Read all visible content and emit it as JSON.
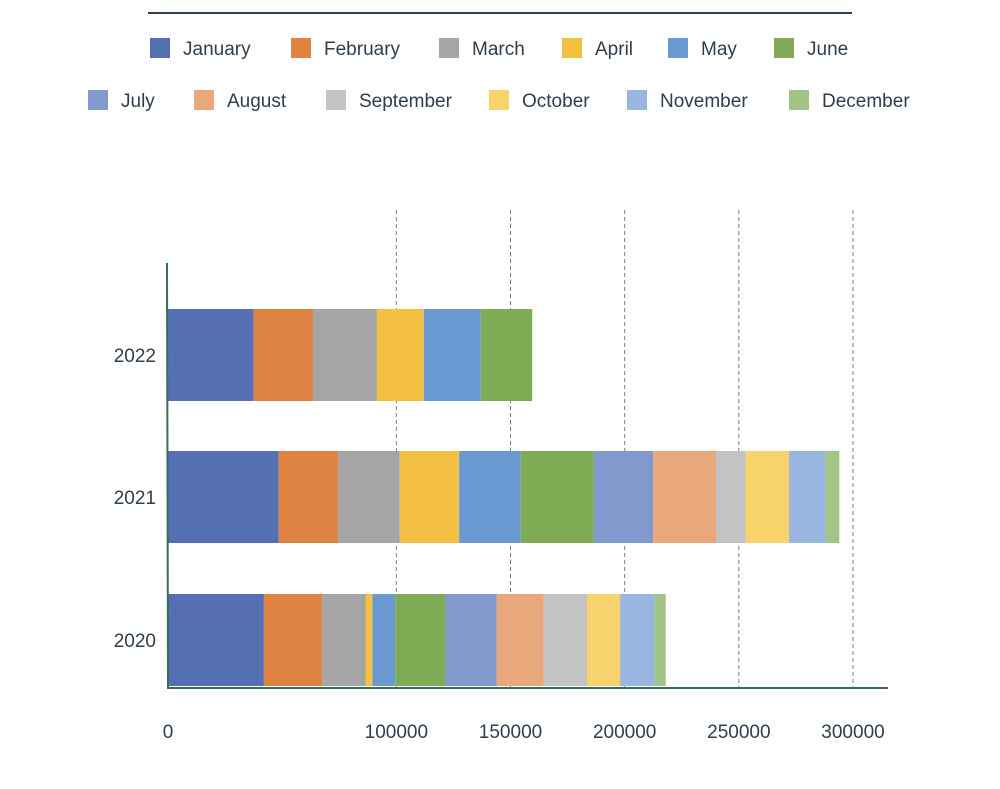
{
  "chart_data": {
    "type": "bar",
    "orientation": "horizontal",
    "stacked": true,
    "categories": [
      "2022",
      "2021",
      "2020"
    ],
    "xlim": [
      0,
      300000
    ],
    "x_ticks": [
      "0",
      "100000",
      "150000",
      "200000",
      "250000",
      "300000"
    ],
    "x_tick_values": [
      0,
      100000,
      150000,
      200000,
      250000,
      300000
    ],
    "grid": "vertical dashed",
    "legend_position": "top",
    "series": [
      {
        "name": "January",
        "color": "#5470b3",
        "values": [
          37500,
          48500,
          42000
        ]
      },
      {
        "name": "February",
        "color": "#df8343",
        "values": [
          26000,
          26000,
          25500
        ]
      },
      {
        "name": "March",
        "color": "#a5a5a5",
        "values": [
          28000,
          27000,
          19000
        ]
      },
      {
        "name": "April",
        "color": "#f4c043",
        "values": [
          20500,
          26000,
          3000
        ]
      },
      {
        "name": "May",
        "color": "#6a99d1",
        "values": [
          25000,
          27000,
          10000
        ]
      },
      {
        "name": "June",
        "color": "#7eab54",
        "values": [
          22500,
          32000,
          22000
        ]
      },
      {
        "name": "July",
        "color": "#8299cd",
        "values": [
          null,
          26000,
          22500
        ]
      },
      {
        "name": "August",
        "color": "#e8a87b",
        "values": [
          null,
          27500,
          20500
        ]
      },
      {
        "name": "September",
        "color": "#c3c3c3",
        "values": [
          null,
          13000,
          19000
        ]
      },
      {
        "name": "October",
        "color": "#f8d36b",
        "values": [
          null,
          19000,
          14500
        ]
      },
      {
        "name": "November",
        "color": "#98b6e0",
        "values": [
          null,
          16000,
          15000
        ]
      },
      {
        "name": "December",
        "color": "#a2c585",
        "values": [
          null,
          6000,
          5000
        ]
      }
    ]
  }
}
